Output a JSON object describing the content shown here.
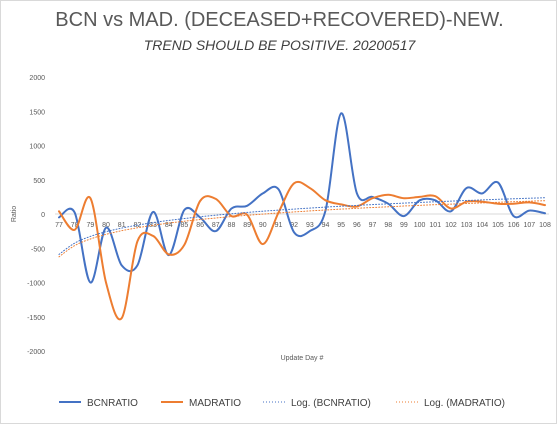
{
  "chart_data": {
    "type": "line",
    "title": "BCN vs MAD. (DECEASED+RECOVERED)-NEW.",
    "subtitle": "TREND SHOULD BE POSITIVE. 20200517",
    "xlabel": "Update Day #",
    "ylabel": "Ratio",
    "ylim": [
      -2000,
      2000
    ],
    "yticks": [
      2000,
      1500,
      1000,
      500,
      0,
      -500,
      -1000,
      -1500,
      -2000
    ],
    "categories": [
      "77",
      "78",
      "79",
      "80",
      "81",
      "82",
      "83",
      "84",
      "85",
      "86",
      "87",
      "88",
      "89",
      "90",
      "91",
      "92",
      "93",
      "94",
      "95",
      "96",
      "97",
      "98",
      "99",
      "100",
      "101",
      "102",
      "103",
      "104",
      "105",
      "106",
      "107",
      "108"
    ],
    "series": [
      {
        "name": "BCNRATIO",
        "color": "#4472c4",
        "style": "solid",
        "values": [
          -50,
          20,
          -1000,
          -200,
          -750,
          -750,
          30,
          -600,
          60,
          -50,
          -250,
          80,
          120,
          300,
          360,
          -270,
          -250,
          50,
          1470,
          300,
          250,
          150,
          -30,
          200,
          200,
          40,
          380,
          300,
          460,
          -30,
          50,
          10
        ]
      },
      {
        "name": "MADRATIO",
        "color": "#ed7d31",
        "style": "solid",
        "values": [
          40,
          -230,
          230,
          -1000,
          -1520,
          -400,
          -320,
          -590,
          -450,
          190,
          220,
          -30,
          -10,
          -440,
          20,
          450,
          380,
          200,
          140,
          110,
          230,
          280,
          230,
          250,
          260,
          80,
          180,
          180,
          150,
          150,
          170,
          130
        ]
      },
      {
        "name": "Log. (BCNRATIO)",
        "color": "#4472c4",
        "style": "dotted",
        "trend": "log"
      },
      {
        "name": "Log. (MADRATIO)",
        "color": "#ed7d31",
        "style": "dotted",
        "trend": "log"
      }
    ],
    "legend": "bottom"
  }
}
